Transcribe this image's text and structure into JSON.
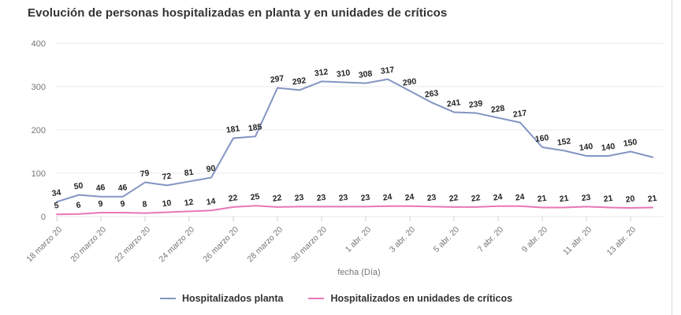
{
  "chart_data": {
    "type": "line",
    "title": "Evolución de personas hospitalizadas en planta y en unidades de críticos",
    "xlabel": "fecha (Día)",
    "ylabel": "",
    "ylim": [
      0,
      400
    ],
    "yticks": [
      0,
      100,
      200,
      300,
      400
    ],
    "x_tick_labels": [
      "18 marzo 20",
      "20 marzo 20",
      "22 marzo 20",
      "24 marzo 20",
      "26 marzo 20",
      "28 marzo 20",
      "30 marzo 20",
      "1 abr. 20",
      "3 abr. 20",
      "5 abr. 20",
      "7 abr. 20",
      "9 abr. 20",
      "11 abr. 20",
      "13 abr. 20"
    ],
    "x_ticks_every": 2,
    "n_points": 28,
    "grid": "horizontal-only",
    "legend_position": "bottom",
    "series": [
      {
        "name": "Hospitalizados planta",
        "color": "#8495c2",
        "values": [
          34,
          50,
          46,
          46,
          79,
          72,
          81,
          90,
          181,
          185,
          297,
          292,
          312,
          310,
          308,
          317,
          290,
          263,
          241,
          239,
          228,
          217,
          160,
          152,
          140,
          140,
          150,
          137
        ],
        "point_labels": [
          "34",
          "50",
          "46",
          "46",
          "79",
          "72",
          "81",
          "90",
          "181",
          "185",
          "297",
          "292",
          "312",
          "310",
          "308",
          "317",
          "290",
          "263",
          "241",
          "239",
          "228",
          "217",
          "160",
          "152",
          "140",
          "140",
          "150",
          ""
        ]
      },
      {
        "name": "Hospitalizados en unidades de críticos",
        "color": "#e877b6",
        "values": [
          5,
          6,
          9,
          9,
          8,
          10,
          12,
          14,
          22,
          25,
          22,
          23,
          23,
          23,
          23,
          24,
          24,
          23,
          22,
          22,
          24,
          24,
          21,
          21,
          23,
          21,
          20,
          21
        ],
        "point_labels": [
          "5",
          "6",
          "9",
          "9",
          "8",
          "10",
          "12",
          "14",
          "22",
          "25",
          "22",
          "23",
          "23",
          "23",
          "23",
          "24",
          "24",
          "23",
          "22",
          "22",
          "24",
          "24",
          "21",
          "21",
          "23",
          "21",
          "20",
          "21"
        ]
      }
    ]
  },
  "colors": {
    "grid": "#e8e8e8",
    "tick": "#cccccc",
    "axis_text": "#767676",
    "point_label_text": "#262626",
    "title_text": "#333333",
    "divider": "#d9d9d9"
  }
}
